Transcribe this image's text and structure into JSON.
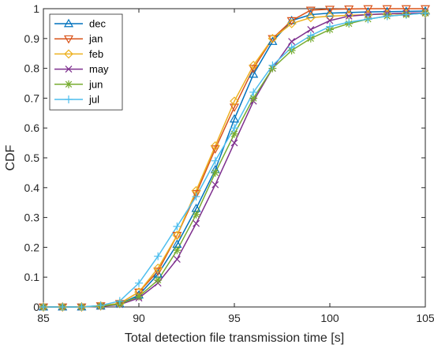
{
  "chart_data": {
    "type": "line",
    "xlabel": "Total detection file transmission time [s]",
    "ylabel": "CDF",
    "xlim": [
      85,
      105
    ],
    "ylim": [
      0,
      1
    ],
    "x_ticks": [
      "85",
      "90",
      "95",
      "100",
      "105"
    ],
    "y_ticks": [
      "0",
      "0.1",
      "0.2",
      "0.3",
      "0.4",
      "0.5",
      "0.6",
      "0.7",
      "0.8",
      "0.9",
      "1"
    ],
    "grid": false,
    "legend_position": "top-left",
    "x": [
      85,
      86,
      87,
      88,
      89,
      90,
      91,
      92,
      93,
      94,
      95,
      96,
      97,
      98,
      99,
      100,
      101,
      102,
      103,
      104,
      105
    ],
    "series": [
      {
        "name": "dec",
        "color": "#0072BD",
        "marker": "triangle-up",
        "values": [
          0,
          0,
          0,
          0.003,
          0.01,
          0.04,
          0.11,
          0.21,
          0.33,
          0.46,
          0.63,
          0.78,
          0.89,
          0.96,
          0.98,
          0.985,
          0.987,
          0.989,
          0.99,
          0.991,
          0.992
        ]
      },
      {
        "name": "jan",
        "color": "#D95319",
        "marker": "triangle-down",
        "values": [
          0,
          0,
          0,
          0.004,
          0.012,
          0.05,
          0.12,
          0.24,
          0.38,
          0.53,
          0.67,
          0.8,
          0.9,
          0.96,
          0.995,
          0.998,
          0.999,
          1.0,
          1.0,
          1.0,
          1.0
        ]
      },
      {
        "name": "feb",
        "color": "#EDB120",
        "marker": "diamond",
        "values": [
          0,
          0,
          0,
          0.004,
          0.012,
          0.05,
          0.13,
          0.24,
          0.39,
          0.54,
          0.69,
          0.81,
          0.9,
          0.95,
          0.97,
          0.975,
          0.978,
          0.98,
          0.982,
          0.983,
          0.985
        ]
      },
      {
        "name": "may",
        "color": "#7E2F8E",
        "marker": "x",
        "values": [
          0,
          0,
          0,
          0.002,
          0.008,
          0.03,
          0.08,
          0.16,
          0.28,
          0.41,
          0.55,
          0.69,
          0.8,
          0.89,
          0.93,
          0.96,
          0.975,
          0.98,
          0.983,
          0.985,
          0.986
        ]
      },
      {
        "name": "jun",
        "color": "#77AC30",
        "marker": "asterisk",
        "values": [
          0,
          0,
          0,
          0.003,
          0.01,
          0.035,
          0.09,
          0.19,
          0.31,
          0.45,
          0.58,
          0.7,
          0.8,
          0.86,
          0.9,
          0.93,
          0.95,
          0.965,
          0.975,
          0.98,
          0.985
        ]
      },
      {
        "name": "jul",
        "color": "#4DBEEE",
        "marker": "plus",
        "values": [
          0,
          0,
          0,
          0.005,
          0.02,
          0.08,
          0.17,
          0.27,
          0.37,
          0.49,
          0.6,
          0.72,
          0.81,
          0.87,
          0.91,
          0.94,
          0.955,
          0.965,
          0.975,
          0.98,
          0.985
        ]
      }
    ]
  }
}
